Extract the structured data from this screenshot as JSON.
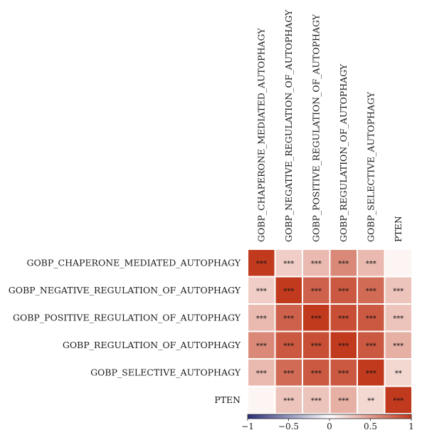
{
  "chart_data": {
    "type": "heatmap",
    "rows": [
      "GOBP_CHAPERONE_MEDIATED_AUTOPHAGY",
      "GOBP_NEGATIVE_REGULATION_OF_AUTOPHAGY",
      "GOBP_POSITIVE_REGULATION_OF_AUTOPHAGY",
      "GOBP_REGULATION_OF_AUTOPHAGY",
      "GOBP_SELECTIVE_AUTOPHAGY",
      "PTEN"
    ],
    "columns": [
      "GOBP_CHAPERONE_MEDIATED_AUTOPHAGY",
      "GOBP_NEGATIVE_REGULATION_OF_AUTOPHAGY",
      "GOBP_POSITIVE_REGULATION_OF_AUTOPHAGY",
      "GOBP_REGULATION_OF_AUTOPHAGY",
      "GOBP_SELECTIVE_AUTOPHAGY",
      "PTEN"
    ],
    "values": [
      [
        1.0,
        0.25,
        0.35,
        0.6,
        0.35,
        0.05
      ],
      [
        0.25,
        1.0,
        0.8,
        0.85,
        0.75,
        0.3
      ],
      [
        0.35,
        0.8,
        1.0,
        0.9,
        0.85,
        0.3
      ],
      [
        0.6,
        0.85,
        0.9,
        1.0,
        0.85,
        0.4
      ],
      [
        0.35,
        0.75,
        0.85,
        0.85,
        1.0,
        0.2
      ],
      [
        0.05,
        0.3,
        0.3,
        0.4,
        0.2,
        1.0
      ]
    ],
    "significance": [
      [
        "***",
        "***",
        "***",
        "***",
        "***",
        ""
      ],
      [
        "***",
        "***",
        "***",
        "***",
        "***",
        "***"
      ],
      [
        "***",
        "***",
        "***",
        "***",
        "***",
        "***"
      ],
      [
        "***",
        "***",
        "***",
        "***",
        "***",
        "***"
      ],
      [
        "***",
        "***",
        "***",
        "***",
        "***",
        "**"
      ],
      [
        "",
        "***",
        "***",
        "***",
        "**",
        "***"
      ]
    ],
    "colorbar": {
      "min": -1,
      "max": 1,
      "ticks": [
        -1,
        -0.5,
        0,
        0.5,
        1
      ],
      "tick_labels": [
        "−1",
        "−0.5",
        "0",
        "0.5",
        "1"
      ],
      "low_color": "#2b2c7a",
      "mid_color": "#ffffff",
      "high_color": "#c23a1e"
    }
  }
}
